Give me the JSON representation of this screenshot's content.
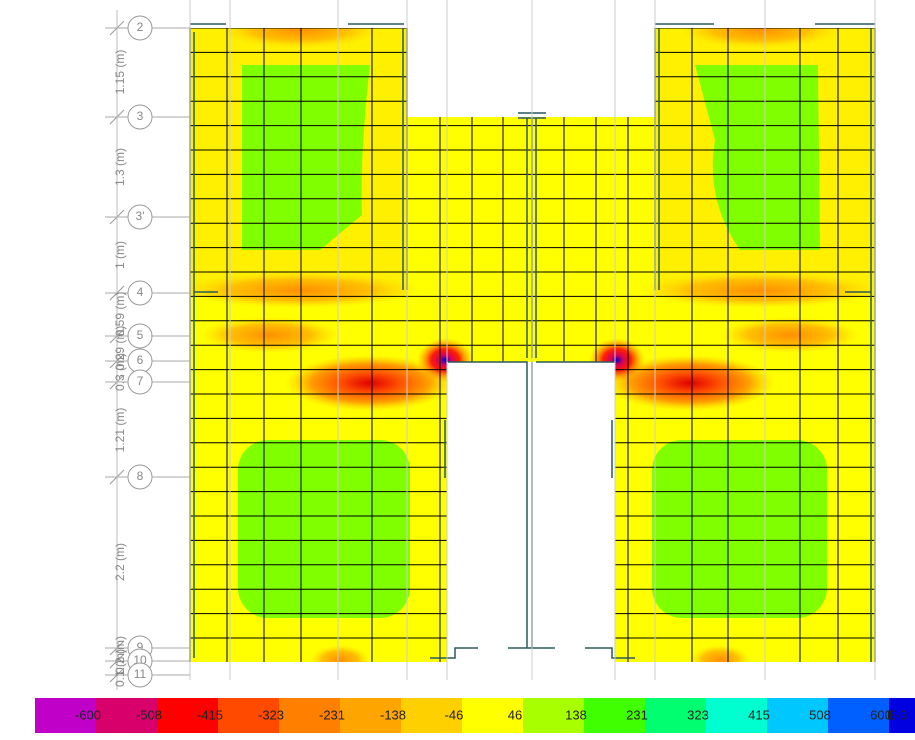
{
  "grid_lines": [
    {
      "label": "2"
    },
    {
      "label": "3"
    },
    {
      "label": "3'"
    },
    {
      "label": "4"
    },
    {
      "label": "5"
    },
    {
      "label": "6"
    },
    {
      "label": "7"
    },
    {
      "label": "8"
    },
    {
      "label": "9"
    },
    {
      "label": "10"
    },
    {
      "label": "11"
    }
  ],
  "dimensions": [
    "1.15 (m)",
    "1.3 (m)",
    "1 (m)",
    "0.59 (m)",
    "0.29 (m)",
    "0.3 (m)",
    "1.21 (m)",
    "2.2 (m)",
    "0.2 (m)",
    "0.1 (m)"
  ],
  "legend": {
    "labels": [
      "-600",
      "-508",
      "-415",
      "-323",
      "-231",
      "-138",
      "-46",
      "46",
      "138",
      "231",
      "323",
      "415",
      "508",
      "600"
    ],
    "unit": "E-3",
    "colors": [
      "#c000c8",
      "#d8006a",
      "#ff0000",
      "#ff4a00",
      "#ff8000",
      "#ffa500",
      "#ffd000",
      "#ffff00",
      "#a8ff00",
      "#40ff00",
      "#00ff70",
      "#00ffd0",
      "#00c8ff",
      "#0060ff",
      "#0000e0"
    ]
  }
}
